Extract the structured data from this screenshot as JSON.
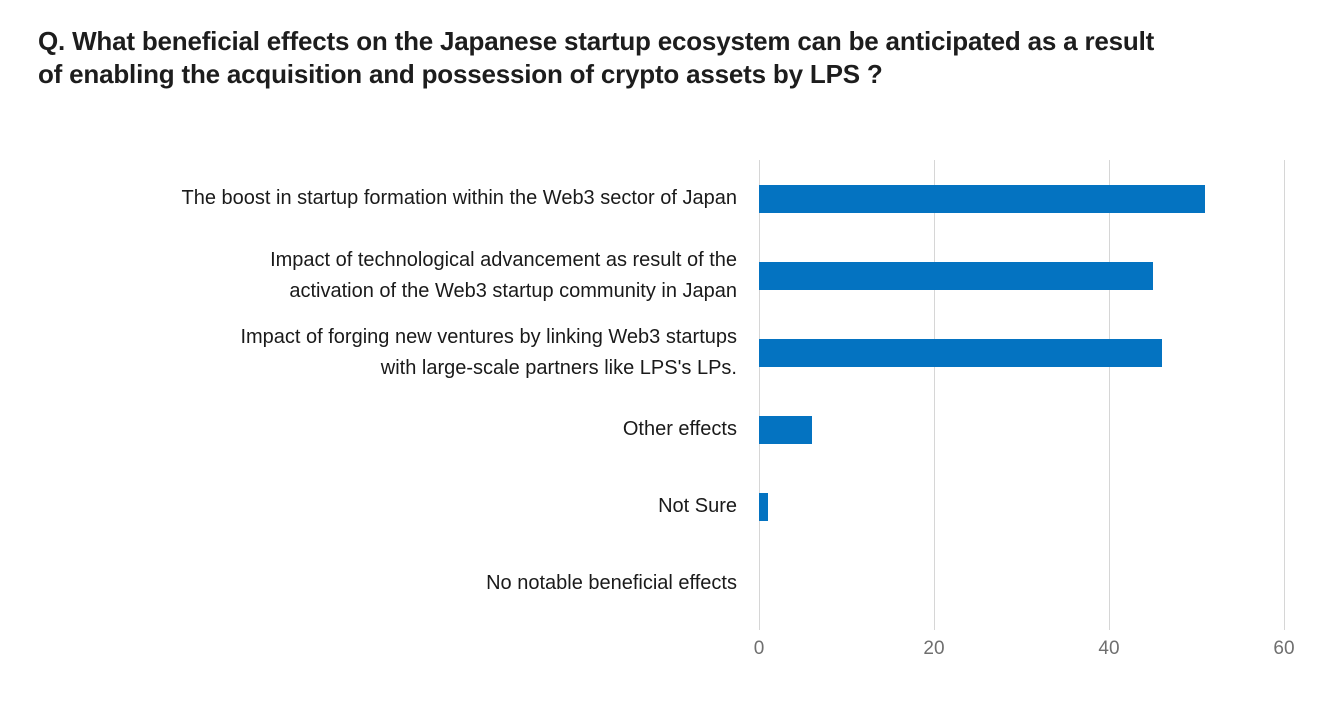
{
  "header": {
    "title": "Q. What beneficial effects on the Japanese startup ecosystem can be anticipated as a result\nof enabling the acquisition and possession of crypto assets by LPS ?"
  },
  "colors": {
    "bar": "#0473c1",
    "gridline": "#d6d6d6",
    "axis_text": "#6f6f6f",
    "label_text": "#1a1a1a",
    "title_text": "#1d1d1d"
  },
  "chart_data": {
    "type": "bar",
    "orientation": "horizontal",
    "title": "Q. What beneficial effects on the Japanese startup ecosystem can be anticipated as a result of enabling the acquisition and possession of crypto assets by LPS ?",
    "categories": [
      "The boost in startup formation within the Web3 sector of Japan",
      "Impact of technological advancement as result of the\nactivation of the Web3 startup community in Japan",
      "Impact of forging new ventures by linking Web3 startups\nwith large-scale partners like LPS's LPs.",
      "Other effects",
      "Not Sure",
      "No notable beneficial effects"
    ],
    "values": [
      51,
      45,
      46,
      6,
      1,
      0
    ],
    "x_ticks": [
      0,
      20,
      40,
      60
    ],
    "xlim": [
      0,
      64
    ],
    "grid": true,
    "legend": false,
    "xlabel": "",
    "ylabel": ""
  }
}
